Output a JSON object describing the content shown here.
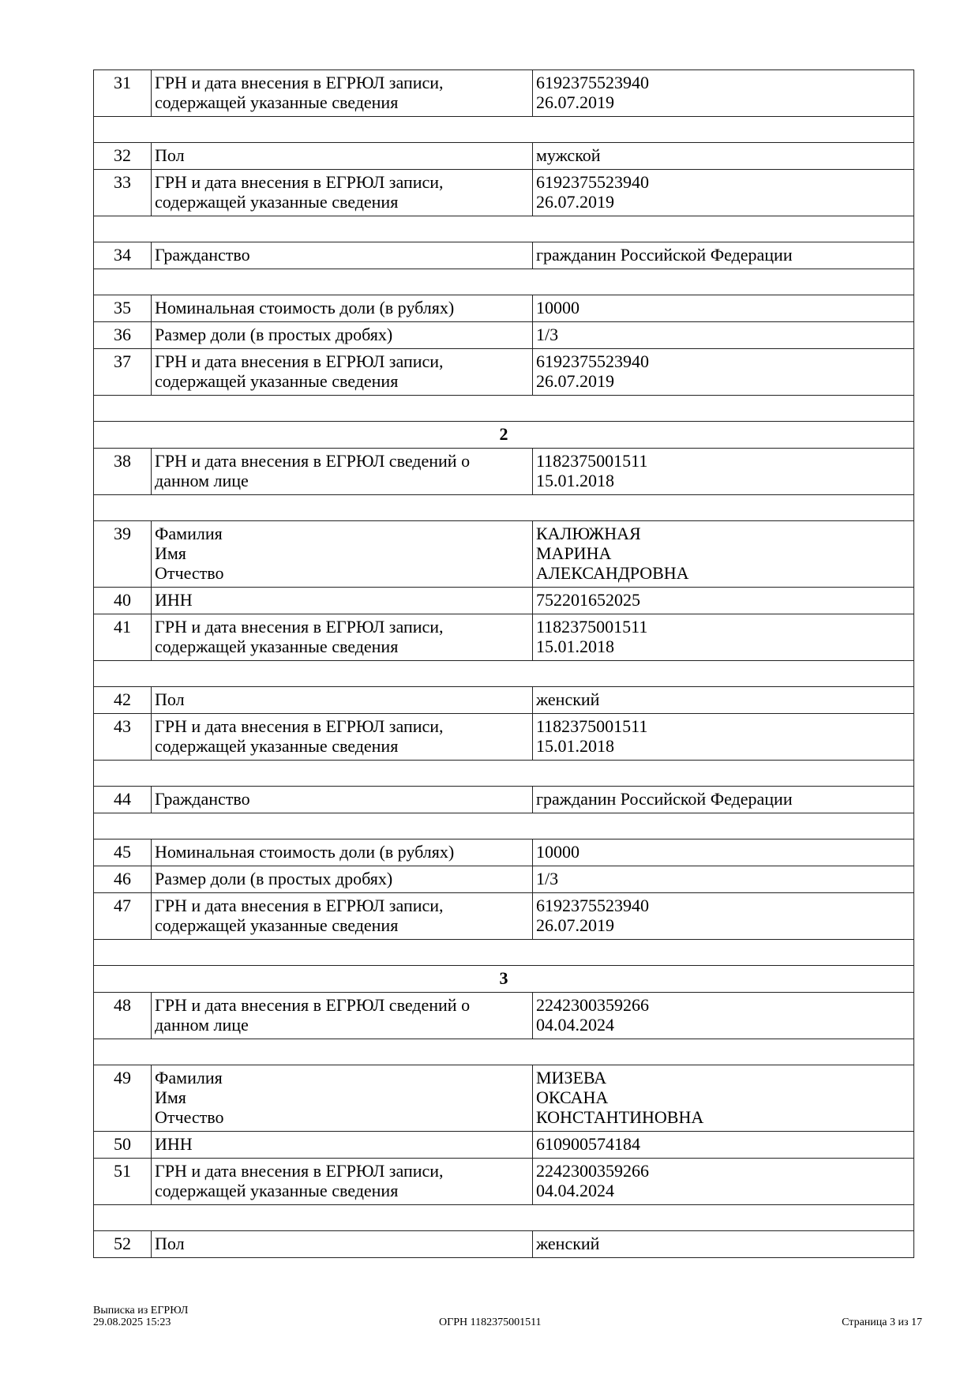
{
  "rows": [
    {
      "type": "row",
      "num": "31",
      "label": [
        "ГРН и дата внесения в ЕГРЮЛ записи,",
        "содержащей указанные сведения"
      ],
      "value": [
        "6192375523940",
        "26.07.2019"
      ]
    },
    {
      "type": "blank"
    },
    {
      "type": "row",
      "num": "32",
      "label": [
        "Пол"
      ],
      "value": [
        "мужской"
      ]
    },
    {
      "type": "row",
      "num": "33",
      "label": [
        "ГРН и дата внесения в ЕГРЮЛ записи,",
        "содержащей указанные сведения"
      ],
      "value": [
        "6192375523940",
        "26.07.2019"
      ]
    },
    {
      "type": "blank"
    },
    {
      "type": "row",
      "num": "34",
      "label": [
        "Гражданство"
      ],
      "value": [
        "гражданин Российской Федерации"
      ]
    },
    {
      "type": "blank"
    },
    {
      "type": "row",
      "num": "35",
      "label": [
        "Номинальная стоимость доли (в рублях)"
      ],
      "value": [
        "10000"
      ]
    },
    {
      "type": "row",
      "num": "36",
      "label": [
        "Размер доли (в простых дробях)"
      ],
      "value": [
        "1/3"
      ]
    },
    {
      "type": "row",
      "num": "37",
      "label": [
        "ГРН и дата внесения в ЕГРЮЛ записи,",
        "содержащей указанные сведения"
      ],
      "value": [
        "6192375523940",
        "26.07.2019"
      ]
    },
    {
      "type": "blank"
    },
    {
      "type": "section",
      "title": "2"
    },
    {
      "type": "row",
      "num": "38",
      "label": [
        "ГРН и дата внесения в ЕГРЮЛ сведений о",
        "данном лице"
      ],
      "value": [
        "1182375001511",
        "15.01.2018"
      ]
    },
    {
      "type": "blank"
    },
    {
      "type": "row",
      "num": "39",
      "label": [
        "Фамилия",
        "Имя",
        "Отчество"
      ],
      "value": [
        "КАЛЮЖНАЯ",
        "МАРИНА",
        "АЛЕКСАНДРОВНА"
      ]
    },
    {
      "type": "row",
      "num": "40",
      "label": [
        "ИНН"
      ],
      "value": [
        "752201652025"
      ]
    },
    {
      "type": "row",
      "num": "41",
      "label": [
        "ГРН и дата внесения в ЕГРЮЛ записи,",
        "содержащей указанные сведения"
      ],
      "value": [
        "1182375001511",
        "15.01.2018"
      ]
    },
    {
      "type": "blank"
    },
    {
      "type": "row",
      "num": "42",
      "label": [
        "Пол"
      ],
      "value": [
        "женский"
      ]
    },
    {
      "type": "row",
      "num": "43",
      "label": [
        "ГРН и дата внесения в ЕГРЮЛ записи,",
        "содержащей указанные сведения"
      ],
      "value": [
        "1182375001511",
        "15.01.2018"
      ]
    },
    {
      "type": "blank"
    },
    {
      "type": "row",
      "num": "44",
      "label": [
        "Гражданство"
      ],
      "value": [
        "гражданин Российской Федерации"
      ]
    },
    {
      "type": "blank"
    },
    {
      "type": "row",
      "num": "45",
      "label": [
        "Номинальная стоимость доли (в рублях)"
      ],
      "value": [
        "10000"
      ]
    },
    {
      "type": "row",
      "num": "46",
      "label": [
        "Размер доли (в простых дробях)"
      ],
      "value": [
        "1/3"
      ]
    },
    {
      "type": "row",
      "num": "47",
      "label": [
        "ГРН и дата внесения в ЕГРЮЛ записи,",
        "содержащей указанные сведения"
      ],
      "value": [
        "6192375523940",
        "26.07.2019"
      ]
    },
    {
      "type": "blank"
    },
    {
      "type": "section",
      "title": "3"
    },
    {
      "type": "row",
      "num": "48",
      "label": [
        "ГРН и дата внесения в ЕГРЮЛ сведений о",
        "данном лице"
      ],
      "value": [
        "2242300359266",
        "04.04.2024"
      ]
    },
    {
      "type": "blank"
    },
    {
      "type": "row",
      "num": "49",
      "label": [
        "Фамилия",
        "Имя",
        "Отчество"
      ],
      "value": [
        "МИЗЕВА",
        "ОКСАНА",
        "КОНСТАНТИНОВНА"
      ]
    },
    {
      "type": "row",
      "num": "50",
      "label": [
        "ИНН"
      ],
      "value": [
        "610900574184"
      ]
    },
    {
      "type": "row",
      "num": "51",
      "label": [
        "ГРН и дата внесения в ЕГРЮЛ записи,",
        "содержащей указанные сведения"
      ],
      "value": [
        "2242300359266",
        "04.04.2024"
      ]
    },
    {
      "type": "blank"
    },
    {
      "type": "row",
      "num": "52",
      "label": [
        "Пол"
      ],
      "value": [
        "женский"
      ]
    }
  ],
  "footer": {
    "doc_title": "Выписка из ЕГРЮЛ",
    "datetime": "29.08.2025 15:23",
    "ogrn": "ОГРН 1182375001511",
    "page": "Страница 3 из 17"
  }
}
